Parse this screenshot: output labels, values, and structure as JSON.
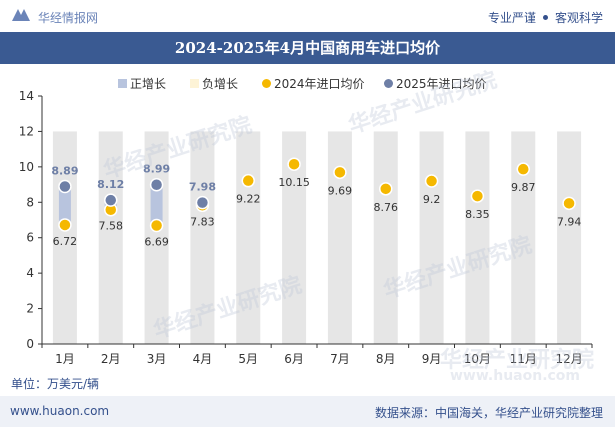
{
  "header": {
    "brand": "华经情报网",
    "tagline_left": "专业严谨",
    "tagline_right": "客观科学"
  },
  "title": "2024-2025年4月中国商用车进口均价",
  "unit_label": "单位：万美元/辆",
  "footer": {
    "website": "www.huaon.com",
    "source": "数据来源：中国海关，华经产业研究院整理"
  },
  "watermark": "华经产业研究院",
  "watermark_url": "www.huaon.com",
  "colors": {
    "positive_bar": "#b8c4de",
    "negative_bar": "#fdf3d6",
    "series_2024": "#f5b800",
    "series_2025": "#6e7fa6",
    "column_bg": "#e6e6e6",
    "title_bg": "#3a5a92"
  },
  "chart_data": {
    "type": "line",
    "categories": [
      "1月",
      "2月",
      "3月",
      "4月",
      "5月",
      "6月",
      "7月",
      "8月",
      "9月",
      "10月",
      "11月",
      "12月"
    ],
    "ylim": [
      0,
      14
    ],
    "yticks": [
      0,
      2,
      4,
      6,
      8,
      10,
      12,
      14
    ],
    "legend": [
      "正增长",
      "负增长",
      "2024年进口均价",
      "2025年进口均价"
    ],
    "legend_position": "top",
    "series": [
      {
        "name": "2024年进口均价",
        "values": [
          6.72,
          7.58,
          6.69,
          7.83,
          9.22,
          10.15,
          9.69,
          8.76,
          9.2,
          8.35,
          9.87,
          7.94
        ]
      },
      {
        "name": "2025年进口均价",
        "values": [
          8.89,
          8.12,
          8.99,
          7.98,
          null,
          null,
          null,
          null,
          null,
          null,
          null,
          null
        ]
      }
    ],
    "labels_2024": [
      "6.72",
      "7.58",
      "6.69",
      "7.83",
      "9.22",
      "10.15",
      "9.69",
      "8.76",
      "9.2",
      "8.35",
      "9.87",
      "7.94"
    ],
    "labels_2025": [
      "8.89",
      "8.12",
      "8.99",
      "7.98"
    ]
  }
}
